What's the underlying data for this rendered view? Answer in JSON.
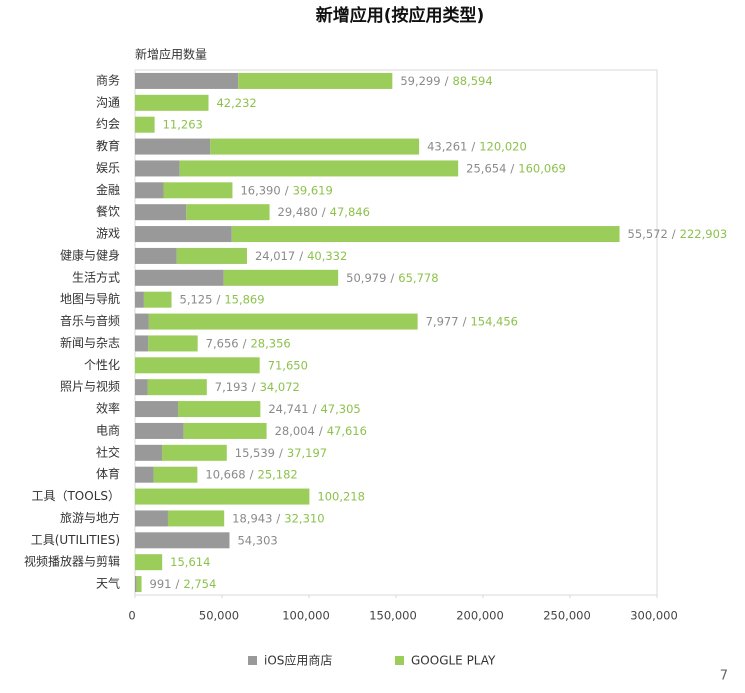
{
  "chart_data": {
    "type": "stacked_hbar",
    "title": "新增应用(按应用类型)",
    "axis_title": "新增应用数量",
    "categories": [
      "商务",
      "沟通",
      "约会",
      "教育",
      "娱乐",
      "金融",
      "餐饮",
      "游戏",
      "健康与健身",
      "生活方式",
      "地图与导航",
      "音乐与音频",
      "新闻与杂志",
      "个性化",
      "照片与视频",
      "效率",
      "电商",
      "社交",
      "体育",
      "工具（TOOLS）",
      "旅游与地方",
      "工具(UTILITIES)",
      "视频播放器与剪辑",
      "天气"
    ],
    "series": [
      {
        "name": "iOS应用商店",
        "color": "#999999",
        "label_color": "#8a8a8a",
        "values": [
          59299,
          null,
          null,
          43261,
          25654,
          16390,
          29480,
          55572,
          24017,
          50979,
          5125,
          7977,
          7656,
          null,
          7193,
          24741,
          28004,
          15539,
          10668,
          null,
          18943,
          54303,
          null,
          991
        ],
        "value_labels": [
          "59,299",
          null,
          null,
          "43,261",
          "25,654",
          "16,390",
          "29,480",
          "55,572",
          "24,017",
          "50,979",
          "5,125",
          "7,977",
          "7,656",
          null,
          "7,193",
          "24,741",
          "28,004",
          "15,539",
          "10,668",
          null,
          "18,943",
          "54,303",
          null,
          "991"
        ]
      },
      {
        "name": "GOOGLE PLAY",
        "color": "#9acd5a",
        "label_color": "#8cc24c",
        "values": [
          88594,
          42232,
          11263,
          120020,
          160069,
          39619,
          47846,
          222903,
          40332,
          65778,
          15869,
          154456,
          28356,
          71650,
          34072,
          47305,
          47616,
          37197,
          25182,
          100218,
          32310,
          null,
          15614,
          2754
        ],
        "value_labels": [
          "88,594",
          "42,232",
          "11,263",
          "120,020",
          "160,069",
          "39,619",
          "47,846",
          "222,903",
          "40,332",
          "65,778",
          "15,869",
          "154,456",
          "28,356",
          "71,650",
          "34,072",
          "47,305",
          "47,616",
          "37,197",
          "25,182",
          "100,218",
          "32,310",
          null,
          "15,614",
          "2,754"
        ]
      }
    ],
    "label_separator": "/",
    "xlim": [
      0,
      300000
    ],
    "xticks": [
      0,
      {
        "value": 50000,
        "label": "50,000"
      },
      {
        "value": 100000,
        "label": "100,000"
      },
      {
        "value": 150000,
        "label": "150,000"
      },
      {
        "value": 200000,
        "label": "200,000"
      },
      {
        "value": 250000,
        "label": "250,000"
      },
      {
        "value": 300000,
        "label": "300,000"
      }
    ],
    "legend": "bottom"
  },
  "page_number": "7"
}
